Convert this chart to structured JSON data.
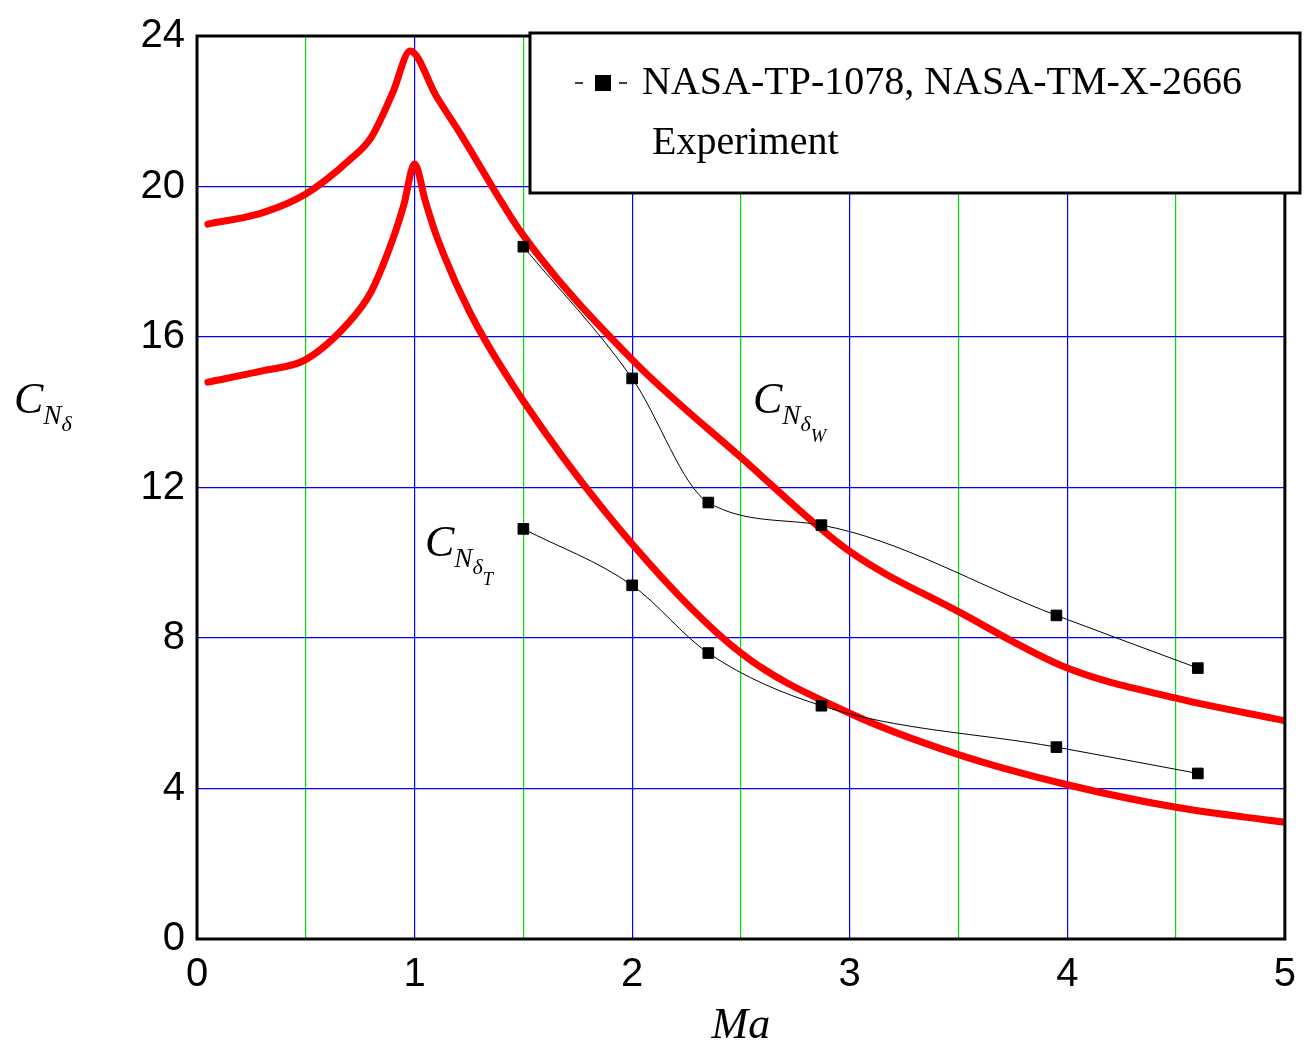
{
  "chart_data": {
    "type": "line",
    "xlabel": "Ma",
    "ylabel": "C$_{N}$$_{δ}$",
    "xlim": [
      0,
      5
    ],
    "ylim": [
      0,
      24
    ],
    "xticks": [
      0,
      {
        "value": 0.5,
        "label": null
      },
      1,
      {
        "value": 1.5,
        "label": null
      },
      2,
      {
        "value": 2.5,
        "label": null
      },
      3,
      {
        "value": 3.5,
        "label": null
      },
      4,
      {
        "value": 4.5,
        "label": null
      },
      5
    ],
    "yticks": [
      0,
      4,
      8,
      12,
      16,
      20,
      24
    ],
    "grid": true,
    "legend": "top right",
    "series": [
      {
        "color": "#ff0000",
        "marker": "none",
        "x": [
          0.05,
          0.3,
          0.5,
          0.7,
          0.8,
          0.9,
          0.98,
          1.1,
          1.2,
          1.5,
          2,
          2.5,
          3,
          3.5,
          4,
          4.5,
          5
        ],
        "values": [
          19.0,
          19.3,
          19.8,
          20.7,
          21.3,
          22.5,
          23.6,
          22.4,
          21.5,
          18.7,
          15.4,
          12.8,
          10.3,
          8.7,
          7.2,
          6.4,
          5.8
        ]
      },
      {
        "color": "#ff0000",
        "marker": "none",
        "x": [
          0.05,
          0.3,
          0.5,
          0.7,
          0.8,
          0.9,
          0.95,
          1,
          1.05,
          1.1,
          1.25,
          1.5,
          2,
          2.5,
          3,
          3.5,
          4,
          4.5,
          5
        ],
        "values": [
          14.8,
          15.1,
          15.4,
          16.4,
          17.2,
          18.6,
          19.5,
          20.6,
          19.6,
          18.7,
          16.7,
          14.3,
          10.5,
          7.6,
          6.0,
          4.9,
          4.1,
          3.5,
          3.1
        ]
      },
      {
        "name": "NASA-TP-1078, NASA-TM-X-2666 Experiment",
        "color": "#000000",
        "marker": "square",
        "x": [
          1.5,
          2.0,
          2.35,
          2.87,
          3.95,
          4.6
        ],
        "values": [
          18.4,
          14.9,
          11.6,
          11.0,
          8.6,
          7.2
        ]
      },
      {
        "color": "#000000",
        "marker": "square",
        "x": [
          1.5,
          2.0,
          2.35,
          2.87,
          3.95,
          4.6
        ],
        "values": [
          10.9,
          9.4,
          7.6,
          6.2,
          5.1,
          4.4
        ]
      }
    ],
    "annotations": [
      "C$_{N}$$_{δ}$$_{W}$",
      "C$_{N}$$_{δ}$$_{T}$"
    ]
  }
}
